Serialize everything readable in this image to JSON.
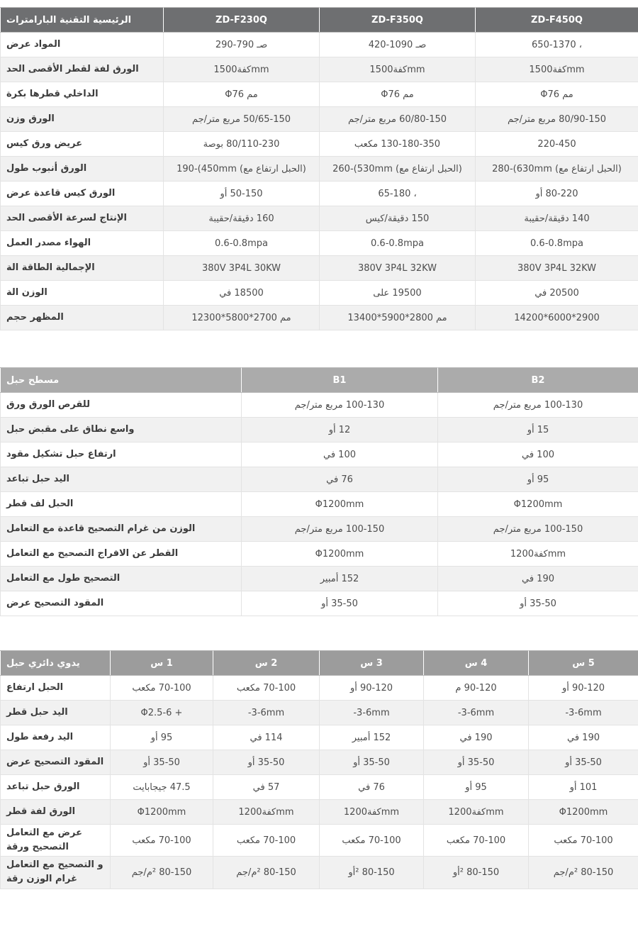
{
  "tables": [
    {
      "id": "main-specs",
      "header_label": "البارامترات‎ التقنية‎ الرئيسية‎",
      "columns": [
        "ZD-F230Q",
        "ZD-F350Q",
        "ZD-F450Q"
      ],
      "header_bg": "#6e6f71",
      "rows": [
        {
          "label": "عرض‎ المواد‎",
          "values": [
            "‎290-790 صـ‎",
            "‎420-1090 صـ‎",
            "‎650-1370 ،"
          ]
        },
        {
          "label": "الحد‎ الأقصى‎ لقطر‎ لفة‎ الورق‎",
          "values": [
            "‎1500كفة‎mm",
            "‎1500كفة‎mm",
            "‎1500كفة‎mm"
          ]
        },
        {
          "label": "بكرة‎ قطرها‎ الداخلي‎",
          "values": [
            "Φ76 مم‎",
            "Φ76 مم‎",
            "Φ76 مم‎"
          ]
        },
        {
          "label": "وزن‎ الورق‎",
          "values": [
            "جم‎/متر‎ مربع‎ 50/65-150",
            "جم‎/متر‎ مربع‎ 60/80-150",
            "جم‎/متر‎ مربع‎ 80/90-150"
          ]
        },
        {
          "label": "كيس‎ ورق‎ عريض‎",
          "values": [
            "بوصة‎ 80/110-230",
            "مكعب‎ 130-180-350",
            "‎220-450"
          ]
        },
        {
          "label": "طول‎ أنبوب‎ الورق‎",
          "values": [
            "‎190-(450mm (مع‎ ارتفاع‎ الحبل‎)",
            "‎260-(530mm (مع‎ ارتفاع‎ الحبل‎)",
            "‎280-(630mm (مع‎ ارتفاع‎ الحبل‎)"
          ]
        },
        {
          "label": "عرض‎ قاعدة‎ كيس‎ الورق‎",
          "values": [
            "أو‎ 50-150",
            "‎65-180 ،",
            "أو‎ 80-220"
          ]
        },
        {
          "label": "الحد‎ الأقصى‎ لسرعة‎ الإنتاج‎",
          "values": [
            "حقيبة‎/دقيقة‎ 160",
            "كيس‎/دقيقة‎ 150",
            "حقيبة‎/دقيقة‎ 140"
          ]
        },
        {
          "label": "العمل‎ مصدر‎ الهواء‎",
          "values": [
            "0.6-0.8mpa",
            "0.6-0.8mpa",
            "0.6-0.8mpa"
          ]
        },
        {
          "label": "الة‎ الطاقة‎ الإجمالية‎",
          "values": [
            "380V 3P4L 30KW",
            "380V 3P4L 32KW",
            "380V 3P4L 32KW"
          ]
        },
        {
          "label": "الة‎ الوزن‎",
          "values": [
            "في‎ 18500",
            "على‎ 19500",
            "في‎ 20500"
          ]
        },
        {
          "label": "حجم‎ المظهر‎",
          "values": [
            "‎12300*5800*2700 مم‎",
            "‎13400*5900*2800 مم‎",
            "‎14200*6000*2900"
          ]
        }
      ]
    },
    {
      "id": "flat-rope",
      "header_label": "حبل‎ مسطح‎",
      "columns": [
        "B1",
        "B2"
      ],
      "header_bg": "#ababab",
      "rows": [
        {
          "label": "ورق‎ الورق‎ للقرص‎",
          "values": [
            "جم‎/متر‎ مربع‎ 100-130",
            "جم‎/متر‎ مربع‎ 100-130"
          ]
        },
        {
          "label": "حبل‎ مقبض‎ على‎ نطاق‎ واسع‎",
          "values": [
            "أو‎ 12",
            "أو‎ 15"
          ]
        },
        {
          "label": "مقود‎ تشكيل‎ حبل‎ ارتفاع‎",
          "values": [
            "في‎ 100",
            "في‎ 100"
          ]
        },
        {
          "label": "تباعد‎ حبل‎ اليد‎",
          "values": [
            "في‎ 76",
            "أو‎ 95"
          ]
        },
        {
          "label": "قطر‎ لف‎ الحبل‎",
          "values": [
            "Φ1200mm",
            "Φ1200mm"
          ]
        },
        {
          "label": "التعامل‎ مع‎ قاعدة‎ التصحيح‎ غرام‎ من‎ الوزن‎",
          "values": [
            "جم‎/متر‎ مربع‎ 100-150",
            "جم‎/متر‎ مربع‎ 100-150"
          ]
        },
        {
          "label": "التعامل‎ مع‎ التصحيح‎ الافراج‎ عن‎ القطر‎",
          "values": [
            "Φ1200mm",
            "‎1200كفة‎mm"
          ]
        },
        {
          "label": "التعامل‎ مع‎ طول‎ التصحيح‎",
          "values": [
            "أمبير‎ 152",
            "في‎ 190"
          ]
        },
        {
          "label": "عرض‎ التصحيح‎ المقود‎",
          "values": [
            "أو‎ 35-50",
            "أو‎ 35-50"
          ]
        }
      ]
    },
    {
      "id": "manual-round-rope",
      "header_label": "حبل‎ دائري‎ يدوي‎",
      "columns": [
        "س‎ 1",
        "س‎ 2",
        "س‎ 3",
        "س‎ 4",
        "س‎ 5"
      ],
      "header_bg": "#9c9c9c",
      "rows": [
        {
          "label": "ارتفاع‎ الحبل‎",
          "values": [
            "مكعب‎ 70-100",
            "مكعب‎ 70-100",
            "أو‎ 90-120",
            "م‎ 90-120",
            "أو‎ 90-120"
          ]
        },
        {
          "label": "قطر‎ حبل‎ اليد‎",
          "values": [
            "Φ2.5-6 +",
            "-3-6mm",
            "-3-6mm",
            "-3-6mm",
            "-3-6mm"
          ]
        },
        {
          "label": "طول‎ رفعة‎ اليد‎",
          "values": [
            "أو‎ 95",
            "في‎ 114",
            "أمبير‎ 152",
            "في‎ 190",
            "في‎ 190"
          ]
        },
        {
          "label": "عرض‎ التصحيح‎ المقود‎",
          "values": [
            "أو‎ 35-50",
            "أو‎ 35-50",
            "أو‎ 35-50",
            "أو‎ 35-50",
            "أو‎ 35-50"
          ]
        },
        {
          "label": "تباعد‎ حبل‎ الورق‎",
          "values": [
            "جيجابايت‎ 47.5",
            "في‎ 57",
            "في‎ 76",
            "أو‎ 95",
            "أو‎ 101"
          ]
        },
        {
          "label": "قطر‎ لفة‎ الورق‎",
          "values": [
            "Φ1200mm",
            "‎1200كفة‎mm",
            "‎1200كفة‎mm",
            "‎1200كفة‎mm",
            "Φ1200mm"
          ]
        },
        {
          "label": "التعامل‎ مع‎ عرض‎ ورقة‎ التصحيح‎",
          "values": [
            "مكعب‎ 70-100",
            "مكعب‎ 70-100",
            "مكعب‎ 70-100",
            "مكعب‎ 70-100",
            "مكعب‎ 70-100"
          ]
        },
        {
          "label": "التعامل‎ مع‎ التصحيح‎ و‎ رقة‎ الوزن‎ غرام‎",
          "values": [
            "جم‎/م‎² 80-150",
            "جم‎/م‎² 80-150",
            "أو‎² 80-150",
            "أو‎² 80-150",
            "جم‎/م‎² 80-150"
          ]
        }
      ]
    }
  ]
}
